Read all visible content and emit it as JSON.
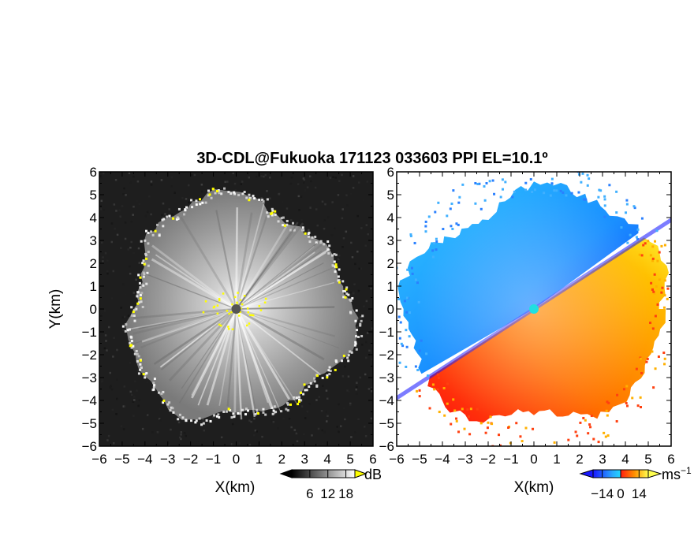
{
  "figure": {
    "title": "3D-CDL@Fukuoka 171123 033603 PPI EL=10.1º"
  },
  "chart_data": [
    {
      "type": "heatmap",
      "panel": "left",
      "quantity": "SNR",
      "xlabel": "X(km)",
      "ylabel": "Y(km)",
      "xlim": [
        -6,
        6
      ],
      "ylim": [
        -6,
        6
      ],
      "x_ticks": [
        "−6",
        "−5",
        "−4",
        "−3",
        "−2",
        "−1",
        "0",
        "1",
        "2",
        "3",
        "4",
        "5",
        "6"
      ],
      "y_ticks": [
        "6",
        "5",
        "4",
        "3",
        "2",
        "1",
        "0",
        "−1",
        "−2",
        "−3",
        "−4",
        "−5",
        "−6"
      ],
      "colorbar": {
        "unit": "dB",
        "ticks": [
          6,
          12,
          18
        ],
        "tick_labels": [
          "6",
          "12",
          "18"
        ],
        "range": [
          0,
          21
        ],
        "colors": [
          "#000000",
          "#ffffff"
        ],
        "extend": "both"
      },
      "highlight_color": "#ffff00",
      "echo_radius_km": 5.2
    },
    {
      "type": "heatmap",
      "panel": "right",
      "quantity": "radial velocity",
      "xlabel": "X(km)",
      "xlim": [
        -6,
        6
      ],
      "ylim": [
        -6,
        6
      ],
      "x_ticks": [
        "−6",
        "−5",
        "−4",
        "−3",
        "−2",
        "−1",
        "0",
        "1",
        "2",
        "3",
        "4",
        "5",
        "6"
      ],
      "y_ticks": [
        "6",
        "5",
        "4",
        "3",
        "2",
        "1",
        "0",
        "−1",
        "−2",
        "−3",
        "−4",
        "−5",
        "−6"
      ],
      "colorbar": {
        "unit": "ms",
        "unit_exponent": "−1",
        "ticks": [
          -14,
          0,
          14
        ],
        "tick_labels": [
          "−14",
          "0",
          "14"
        ],
        "range": [
          -21,
          21
        ],
        "colors": [
          "#2020ff",
          "#2aa8ff",
          "#ff3010",
          "#ffa000",
          "#ffff40"
        ],
        "extend": "both"
      },
      "flow_direction_deg": 33
    }
  ]
}
